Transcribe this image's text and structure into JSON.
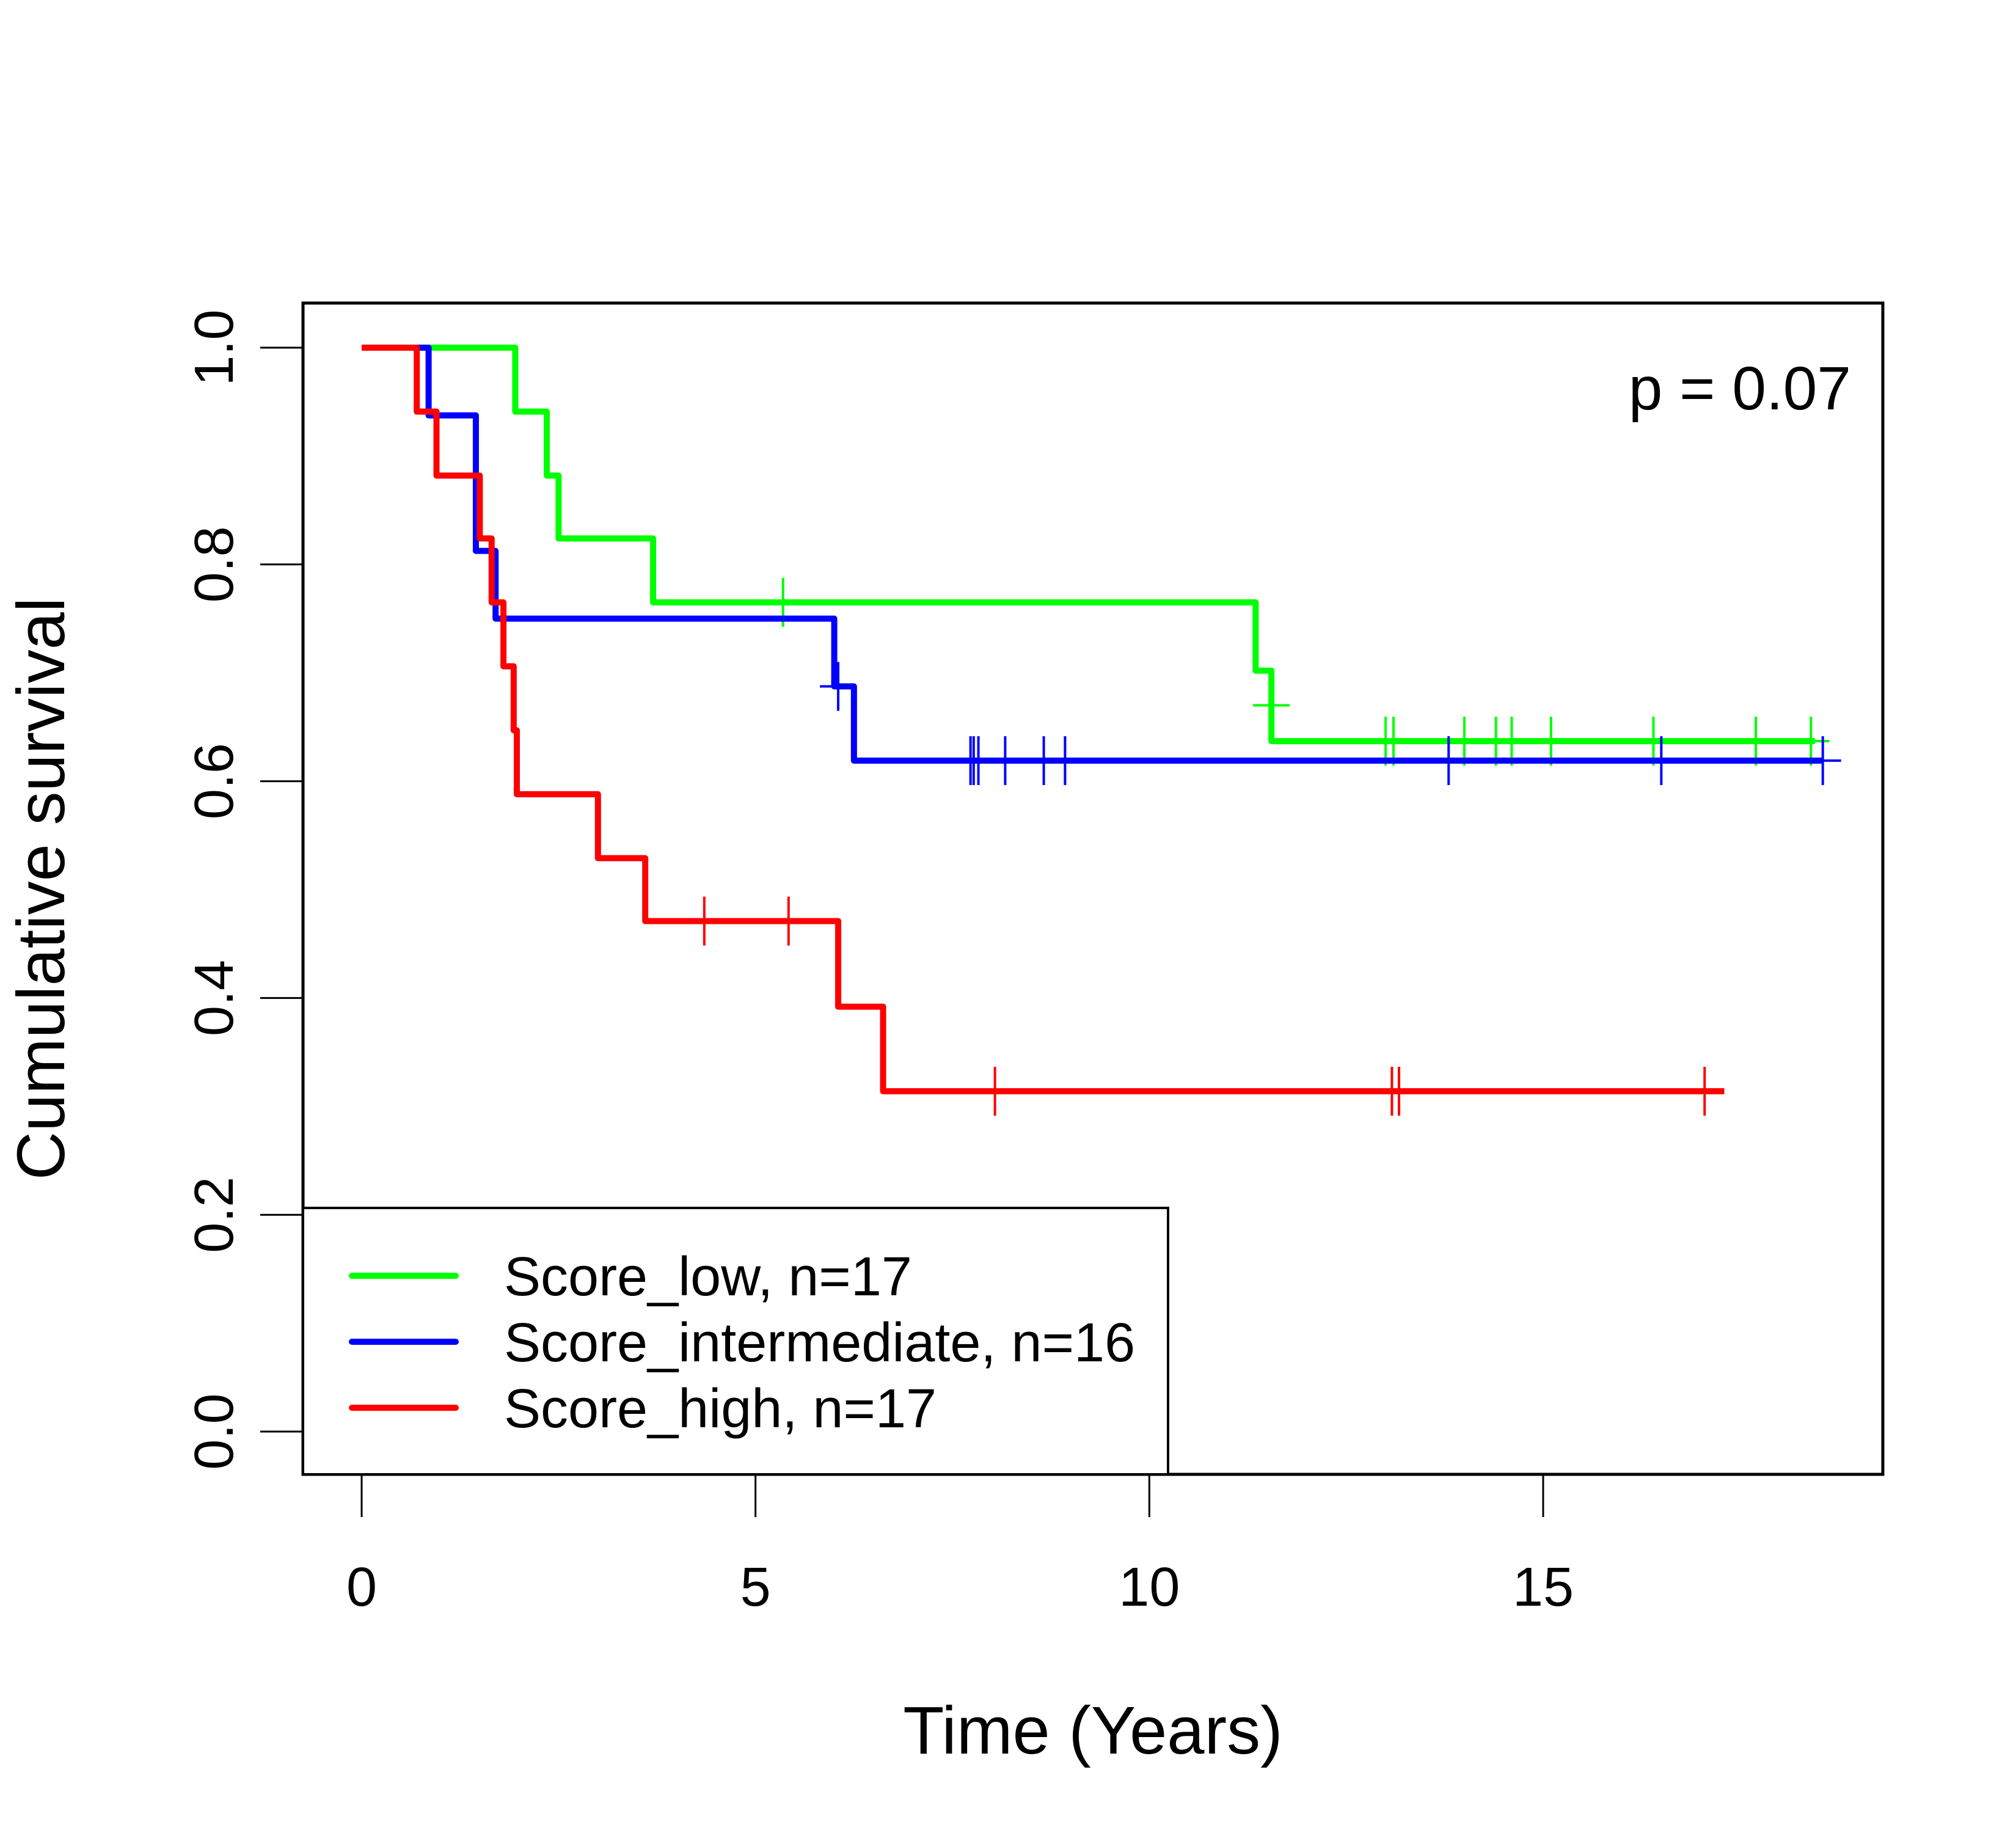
{
  "chart_data": {
    "type": "line",
    "subtype": "kaplan-meier",
    "title": "",
    "xlabel": "Time (Years)",
    "ylabel": "Cumulative survival",
    "xlim": [
      -0.75,
      19.3
    ],
    "ylim": [
      -0.04,
      1.04
    ],
    "x_ticks": [
      0,
      5,
      10,
      15
    ],
    "x_tick_labels": [
      "0",
      "5",
      "10",
      "15"
    ],
    "y_ticks": [
      0.0,
      0.2,
      0.4,
      0.6,
      0.8,
      1.0
    ],
    "y_tick_labels": [
      "0.0",
      "0.2",
      "0.4",
      "0.6",
      "0.8",
      "1.0"
    ],
    "grid": false,
    "annotation": "p = 0.07",
    "legend_position": "bottom-left",
    "series": [
      {
        "name": "Score_low, n=17",
        "color": "#00FF00",
        "steps": [
          [
            0,
            1.0
          ],
          [
            1.95,
            0.941
          ],
          [
            2.35,
            0.882
          ],
          [
            2.5,
            0.824
          ],
          [
            3.7,
            0.765
          ],
          [
            11.35,
            0.702
          ],
          [
            11.55,
            0.637
          ]
        ],
        "end": 18.45,
        "censor": [
          [
            5.35,
            0.765
          ],
          [
            11.55,
            0.67
          ],
          [
            13.0,
            0.637
          ],
          [
            13.1,
            0.637
          ],
          [
            14.0,
            0.637
          ],
          [
            14.4,
            0.637
          ],
          [
            14.6,
            0.637
          ],
          [
            15.1,
            0.637
          ],
          [
            16.4,
            0.637
          ],
          [
            17.7,
            0.637
          ],
          [
            18.4,
            0.637
          ]
        ]
      },
      {
        "name": "Score_intermediate, n=16",
        "color": "#0000FF",
        "steps": [
          [
            0,
            1.0
          ],
          [
            0.85,
            0.9375
          ],
          [
            1.45,
            0.8125
          ],
          [
            1.7,
            0.75
          ],
          [
            6.0,
            0.6875
          ],
          [
            6.25,
            0.619
          ]
        ],
        "end": 18.55,
        "censor": [
          [
            6.05,
            0.6875
          ],
          [
            7.73,
            0.619
          ],
          [
            7.77,
            0.619
          ],
          [
            7.83,
            0.619
          ],
          [
            8.17,
            0.619
          ],
          [
            8.66,
            0.619
          ],
          [
            8.93,
            0.619
          ],
          [
            13.8,
            0.619
          ],
          [
            16.5,
            0.619
          ],
          [
            18.55,
            0.619
          ]
        ]
      },
      {
        "name": "Score_high, n=17",
        "color": "#FF0000",
        "steps": [
          [
            0,
            1.0
          ],
          [
            0.7,
            0.941
          ],
          [
            0.95,
            0.882
          ],
          [
            1.5,
            0.824
          ],
          [
            1.65,
            0.765
          ],
          [
            1.8,
            0.706
          ],
          [
            1.93,
            0.647
          ],
          [
            1.97,
            0.588
          ],
          [
            3.0,
            0.529
          ],
          [
            3.6,
            0.471
          ],
          [
            6.05,
            0.392
          ],
          [
            6.62,
            0.314
          ]
        ],
        "end": 17.3,
        "censor": [
          [
            4.35,
            0.471
          ],
          [
            5.42,
            0.471
          ],
          [
            8.04,
            0.314
          ],
          [
            13.08,
            0.314
          ],
          [
            13.17,
            0.314
          ],
          [
            17.05,
            0.314
          ]
        ]
      }
    ]
  }
}
